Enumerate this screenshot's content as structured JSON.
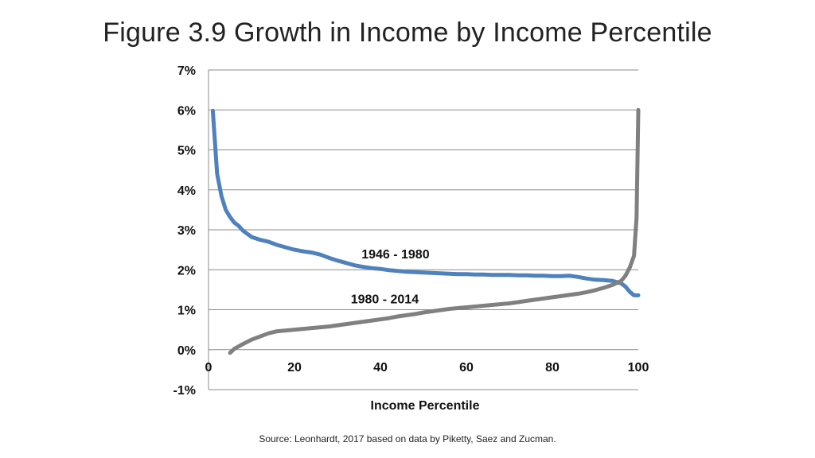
{
  "slide": {
    "title": "Figure 3.9 Growth in Income by Income Percentile",
    "source": "Source: Leonhardt, 2017 based on data by Piketty, Saez and Zucman."
  },
  "chart_data": {
    "type": "line",
    "title": "",
    "xlabel": "Income Percentile",
    "ylabel": "",
    "xlim": [
      0,
      100
    ],
    "ylim": [
      -1,
      7
    ],
    "x_ticks": [
      0,
      20,
      40,
      60,
      80,
      100
    ],
    "x_tick_labels": [
      "0",
      "20",
      "40",
      "60",
      "80",
      "100"
    ],
    "y_ticks": [
      -1,
      0,
      1,
      2,
      3,
      4,
      5,
      6,
      7
    ],
    "y_tick_labels": [
      "-1%",
      "0%",
      "1%",
      "2%",
      "3%",
      "4%",
      "5%",
      "6%",
      "7%"
    ],
    "grid": "horizontal",
    "legend": "none",
    "series": [
      {
        "name": "1946 - 1980",
        "color": "#4f81bd",
        "label_at": [
          43.5,
          2.28
        ],
        "x": [
          1,
          2,
          3,
          4,
          5,
          6,
          7,
          8,
          9,
          10,
          12,
          14,
          16,
          18,
          20,
          22,
          24,
          26,
          28,
          30,
          32,
          34,
          36,
          38,
          40,
          42,
          44,
          46,
          48,
          50,
          52,
          54,
          56,
          58,
          60,
          62,
          64,
          66,
          68,
          70,
          72,
          74,
          76,
          78,
          80,
          82,
          84,
          86,
          88,
          90,
          92,
          94,
          96,
          97,
          98,
          99,
          100
        ],
        "values": [
          5.98,
          4.4,
          3.85,
          3.5,
          3.32,
          3.18,
          3.1,
          2.98,
          2.9,
          2.82,
          2.75,
          2.7,
          2.62,
          2.56,
          2.5,
          2.46,
          2.43,
          2.38,
          2.3,
          2.23,
          2.17,
          2.11,
          2.07,
          2.04,
          2.02,
          1.99,
          1.97,
          1.95,
          1.94,
          1.93,
          1.92,
          1.91,
          1.9,
          1.89,
          1.89,
          1.88,
          1.88,
          1.87,
          1.87,
          1.87,
          1.86,
          1.86,
          1.85,
          1.85,
          1.84,
          1.84,
          1.85,
          1.82,
          1.78,
          1.75,
          1.74,
          1.72,
          1.66,
          1.58,
          1.45,
          1.36,
          1.36
        ]
      },
      {
        "name": "1980 - 2014",
        "color": "#808080",
        "label_at": [
          41,
          1.16
        ],
        "x": [
          5,
          6,
          7,
          8,
          10,
          12,
          14,
          16,
          18,
          20,
          22,
          24,
          26,
          28,
          30,
          32,
          34,
          36,
          38,
          40,
          42,
          44,
          46,
          48,
          50,
          52,
          54,
          56,
          58,
          60,
          62,
          64,
          66,
          68,
          70,
          72,
          74,
          76,
          78,
          80,
          82,
          84,
          86,
          88,
          90,
          92,
          94,
          96,
          97,
          98,
          99,
          99.6,
          100
        ],
        "values": [
          -0.08,
          0.02,
          0.08,
          0.14,
          0.25,
          0.33,
          0.41,
          0.46,
          0.48,
          0.5,
          0.52,
          0.54,
          0.56,
          0.58,
          0.61,
          0.64,
          0.67,
          0.7,
          0.73,
          0.76,
          0.79,
          0.83,
          0.86,
          0.89,
          0.93,
          0.96,
          0.99,
          1.02,
          1.04,
          1.06,
          1.08,
          1.1,
          1.12,
          1.14,
          1.16,
          1.19,
          1.22,
          1.25,
          1.28,
          1.31,
          1.34,
          1.37,
          1.4,
          1.44,
          1.49,
          1.55,
          1.62,
          1.72,
          1.85,
          2.05,
          2.35,
          3.3,
          6.0
        ]
      }
    ]
  }
}
